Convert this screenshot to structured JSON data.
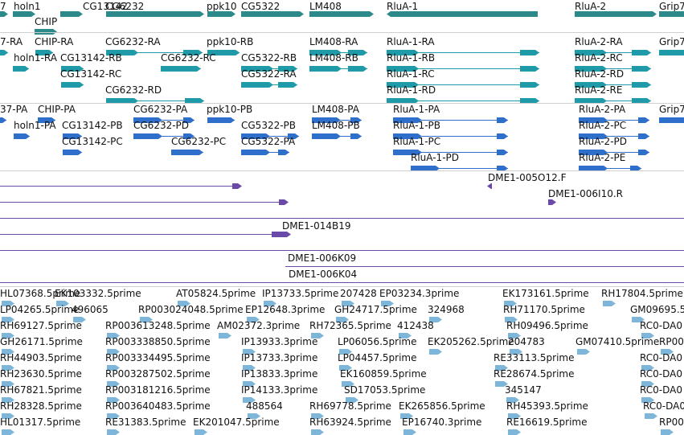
{
  "colors": {
    "gene": "#2c8a8a",
    "mrna": "#1f9aa8",
    "protein": "#2f6fcc",
    "clone": "#6a4aa8",
    "est": "#7eb6d9"
  },
  "gene_labels": [
    "7",
    "holn1",
    "CHIP",
    "CG13142",
    "CG6232",
    "ppk10",
    "CG5322",
    "LM408",
    "RluA-1",
    "RluA-2",
    "Grip7"
  ],
  "mrna_labels": [
    "7-RA",
    "CHIP-RA",
    "CG6232-RA",
    "ppk10-RB",
    "LM408-RA",
    "RluA-1-RA",
    "RluA-2-RA",
    "Grip7",
    "holn1-RA",
    "CG13142-RB",
    "CG6232-RC",
    "CG5322-RB",
    "LM408-RB",
    "RluA-1-RB",
    "RluA-2-RC",
    "CG13142-RC",
    "CG5322-RA",
    "RluA-1-RC",
    "RluA-2-RD",
    "CG6232-RD",
    "RluA-1-RD",
    "RluA-2-RE"
  ],
  "protein_labels": [
    "37-PA",
    "CHIP-PA",
    "CG6232-PA",
    "ppk10-PB",
    "LM408-PA",
    "RluA-1-PA",
    "RluA-2-PA",
    "Grip7",
    "holn1-PA",
    "CG13142-PB",
    "CG6232-PD",
    "CG5322-PB",
    "LM408-PB",
    "RluA-1-PB",
    "RluA-2-PC",
    "CG13142-PC",
    "CG6232-PC",
    "CG5322-PA",
    "RluA-1-PC",
    "RluA-2-PD",
    "RluA-1-PD",
    "RluA-2-PE"
  ],
  "clone_labels": [
    "DME1-005O12.F",
    "DME1-006I10.R",
    "DME1-014B19",
    "DME1-006K09",
    "DME1-006K04"
  ],
  "est_labels": [
    "HL07368.5prime",
    "EK103332.5prime",
    "AT05824.5prime",
    "IP13733.5prime",
    "207428",
    "EP03234.3prime",
    "EK173161.5prime",
    "RH17804.5prime",
    "LP04265.5prime",
    "496065",
    "RP003024048.5prime",
    "EP12648.3prime",
    "GH24717.5prime",
    "324968",
    "RH71170.5prime",
    "GM09695.5",
    "RH69127.5prime",
    "RP003613248.5prime",
    "AM02372.3prime",
    "RH72365.5prime",
    "412438",
    "RH09496.5prime",
    "RC0-DA0",
    "GH26171.5prime",
    "RP003338850.5prime",
    "IP13933.3prime",
    "LP06056.5prime",
    "EK205262.5prime",
    "204783",
    "GM07410.5prime",
    "RP00",
    "RH44903.5prime",
    "RP003334495.5prime",
    "IP13733.3prime",
    "LP04457.5prime",
    "RE33113.5prime",
    "RC0-DA0",
    "RH23630.5prime",
    "RP003287502.5prime",
    "IP13833.3prime",
    "EK160859.5prime",
    "RE28674.5prime",
    "RC0-DA0",
    "RH67821.5prime",
    "RP003181216.5prime",
    "IP14133.3prime",
    "SD17053.5prime",
    "345147",
    "RC0-DA0",
    "RH28328.5prime",
    "RP003640483.5prime",
    "488564",
    "RH69778.5prime",
    "EK265856.5prime",
    "RH45393.5prime",
    "RC0-DA0",
    "HL01317.5prime",
    "RE31383.5prime",
    "EK201047.5prime",
    "RH63924.5prime",
    "EP16740.3prime",
    "RE16619.5prime",
    "RP00"
  ]
}
